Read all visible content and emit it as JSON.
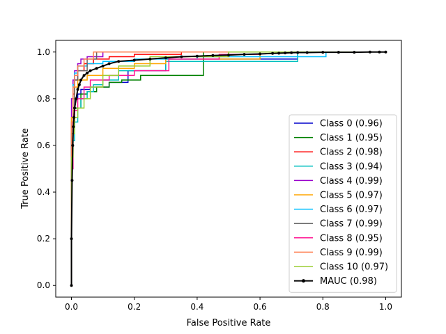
{
  "chart_data": {
    "type": "line",
    "title": "",
    "xlabel": "False Positive Rate",
    "ylabel": "True Positive Rate",
    "xlim": [
      -0.05,
      1.05
    ],
    "ylim": [
      -0.05,
      1.05
    ],
    "xticks": [
      "0.0",
      "0.2",
      "0.4",
      "0.6",
      "0.8",
      "1.0"
    ],
    "yticks": [
      "0.0",
      "0.2",
      "0.4",
      "0.6",
      "0.8",
      "1.0"
    ],
    "grid": false,
    "legend_position": "lower-right",
    "series": [
      {
        "name": "Class 0 (0.96)",
        "color": "#0000cc",
        "x": [
          0,
          0,
          0.005,
          0.005,
          0.01,
          0.01,
          0.02,
          0.02,
          0.03,
          0.03,
          0.06,
          0.06,
          0.12,
          0.12,
          0.18,
          0.18,
          0.3,
          0.3,
          0.72,
          0.72,
          1.0
        ],
        "y": [
          0,
          0.6,
          0.6,
          0.76,
          0.76,
          0.8,
          0.8,
          0.82,
          0.82,
          0.84,
          0.84,
          0.85,
          0.85,
          0.87,
          0.87,
          0.92,
          0.92,
          0.97,
          0.97,
          1.0,
          1.0
        ]
      },
      {
        "name": "Class 1 (0.95)",
        "color": "#008000",
        "x": [
          0,
          0,
          0.005,
          0.005,
          0.01,
          0.01,
          0.03,
          0.03,
          0.05,
          0.05,
          0.08,
          0.08,
          0.12,
          0.12,
          0.16,
          0.16,
          0.22,
          0.22,
          0.42,
          0.42,
          1.0
        ],
        "y": [
          0,
          0.55,
          0.55,
          0.68,
          0.68,
          0.76,
          0.76,
          0.82,
          0.82,
          0.83,
          0.83,
          0.85,
          0.85,
          0.87,
          0.87,
          0.88,
          0.88,
          0.9,
          0.9,
          1.0,
          1.0
        ]
      },
      {
        "name": "Class 2 (0.98)",
        "color": "#ff0000",
        "x": [
          0,
          0,
          0.005,
          0.005,
          0.01,
          0.01,
          0.02,
          0.02,
          0.04,
          0.04,
          0.07,
          0.07,
          0.12,
          0.12,
          0.2,
          0.2,
          0.35,
          0.35,
          1.0
        ],
        "y": [
          0,
          0.7,
          0.7,
          0.82,
          0.82,
          0.88,
          0.88,
          0.92,
          0.92,
          0.95,
          0.95,
          0.97,
          0.97,
          0.98,
          0.98,
          0.99,
          0.99,
          1.0,
          1.0
        ]
      },
      {
        "name": "Class 3 (0.94)",
        "color": "#00bfbf",
        "x": [
          0,
          0,
          0.005,
          0.005,
          0.01,
          0.01,
          0.02,
          0.02,
          0.03,
          0.03,
          0.05,
          0.05,
          0.07,
          0.07,
          0.1,
          0.1,
          0.15,
          0.15,
          0.3,
          0.3,
          0.72,
          0.72,
          1.0
        ],
        "y": [
          0,
          0.5,
          0.5,
          0.62,
          0.62,
          0.7,
          0.7,
          0.76,
          0.76,
          0.8,
          0.8,
          0.83,
          0.83,
          0.86,
          0.86,
          0.88,
          0.88,
          0.92,
          0.92,
          0.96,
          0.96,
          1.0,
          1.0
        ]
      },
      {
        "name": "Class 4 (0.99)",
        "color": "#9900cc",
        "x": [
          0,
          0,
          0.005,
          0.005,
          0.01,
          0.01,
          0.02,
          0.02,
          0.03,
          0.03,
          0.05,
          0.05,
          0.1,
          0.1,
          1.0
        ],
        "y": [
          0,
          0.8,
          0.8,
          0.88,
          0.88,
          0.92,
          0.92,
          0.95,
          0.95,
          0.97,
          0.97,
          0.98,
          0.98,
          1.0,
          1.0
        ]
      },
      {
        "name": "Class 5 (0.97)",
        "color": "#ffa500",
        "x": [
          0,
          0,
          0.005,
          0.005,
          0.01,
          0.01,
          0.02,
          0.02,
          0.05,
          0.05,
          0.1,
          0.1,
          0.2,
          0.2,
          0.3,
          0.3,
          0.6,
          0.6,
          1.0
        ],
        "y": [
          0,
          0.72,
          0.72,
          0.8,
          0.8,
          0.85,
          0.85,
          0.88,
          0.88,
          0.9,
          0.9,
          0.93,
          0.93,
          0.95,
          0.95,
          0.97,
          0.97,
          1.0,
          1.0
        ]
      },
      {
        "name": "Class 6 (0.97)",
        "color": "#00bfff",
        "x": [
          0,
          0,
          0.005,
          0.005,
          0.01,
          0.01,
          0.02,
          0.02,
          0.05,
          0.05,
          0.1,
          0.1,
          0.2,
          0.2,
          0.4,
          0.4,
          0.81,
          0.81,
          1.0
        ],
        "y": [
          0,
          0.62,
          0.62,
          0.86,
          0.86,
          0.91,
          0.91,
          0.94,
          0.94,
          0.95,
          0.95,
          0.96,
          0.96,
          0.97,
          0.97,
          0.98,
          0.98,
          1.0,
          1.0
        ]
      },
      {
        "name": "Class 7 (0.99)",
        "color": "#666666",
        "x": [
          0,
          0,
          0.005,
          0.005,
          0.01,
          0.01,
          0.02,
          0.02,
          0.05,
          0.05,
          0.08,
          0.08,
          1.0
        ],
        "y": [
          0,
          0.65,
          0.65,
          0.75,
          0.75,
          0.88,
          0.88,
          0.92,
          0.92,
          0.97,
          0.97,
          1.0,
          1.0
        ]
      },
      {
        "name": "Class 8 (0.95)",
        "color": "#ff1493",
        "x": [
          0,
          0,
          0.005,
          0.005,
          0.01,
          0.01,
          0.02,
          0.02,
          0.04,
          0.04,
          0.06,
          0.06,
          0.12,
          0.12,
          0.2,
          0.2,
          0.31,
          0.31,
          0.47,
          0.47,
          0.6,
          0.6,
          1.0
        ],
        "y": [
          0,
          0.5,
          0.5,
          0.7,
          0.7,
          0.75,
          0.75,
          0.8,
          0.8,
          0.85,
          0.85,
          0.88,
          0.88,
          0.9,
          0.9,
          0.92,
          0.92,
          0.97,
          0.97,
          0.99,
          0.99,
          1.0,
          1.0
        ]
      },
      {
        "name": "Class 9 (0.99)",
        "color": "#ff7f50",
        "x": [
          0,
          0,
          0.005,
          0.005,
          0.01,
          0.01,
          0.02,
          0.02,
          0.04,
          0.04,
          0.07,
          0.07,
          1.0
        ],
        "y": [
          0,
          0.7,
          0.7,
          0.85,
          0.85,
          0.9,
          0.9,
          0.94,
          0.94,
          0.97,
          0.97,
          1.0,
          1.0
        ]
      },
      {
        "name": "Class 10 (0.97)",
        "color": "#9acd32",
        "x": [
          0,
          0,
          0.005,
          0.005,
          0.01,
          0.01,
          0.02,
          0.02,
          0.04,
          0.04,
          0.06,
          0.06,
          0.1,
          0.1,
          0.15,
          0.15,
          0.25,
          0.25,
          0.5,
          0.5,
          1.0
        ],
        "y": [
          0,
          0.55,
          0.55,
          0.65,
          0.65,
          0.72,
          0.72,
          0.76,
          0.76,
          0.8,
          0.8,
          0.85,
          0.85,
          0.9,
          0.9,
          0.94,
          0.94,
          0.98,
          0.98,
          1.0,
          1.0
        ]
      },
      {
        "name": " MAUC (0.98)",
        "color": "#000000",
        "markers": true,
        "x": [
          0,
          0,
          0.002,
          0.004,
          0.006,
          0.008,
          0.01,
          0.015,
          0.02,
          0.025,
          0.03,
          0.04,
          0.05,
          0.06,
          0.08,
          0.1,
          0.12,
          0.15,
          0.2,
          0.25,
          0.3,
          0.35,
          0.4,
          0.45,
          0.5,
          0.55,
          0.6,
          0.64,
          0.66,
          0.68,
          0.7,
          0.72,
          0.75,
          0.8,
          0.85,
          0.9,
          0.95,
          0.98,
          1.0
        ],
        "y": [
          0,
          0.2,
          0.45,
          0.6,
          0.68,
          0.72,
          0.76,
          0.8,
          0.84,
          0.86,
          0.88,
          0.9,
          0.91,
          0.92,
          0.93,
          0.94,
          0.95,
          0.96,
          0.965,
          0.97,
          0.975,
          0.98,
          0.982,
          0.985,
          0.987,
          0.99,
          0.992,
          0.994,
          0.995,
          0.996,
          0.997,
          0.998,
          0.998,
          0.999,
          0.999,
          0.999,
          1.0,
          1.0,
          1.0
        ]
      }
    ]
  }
}
